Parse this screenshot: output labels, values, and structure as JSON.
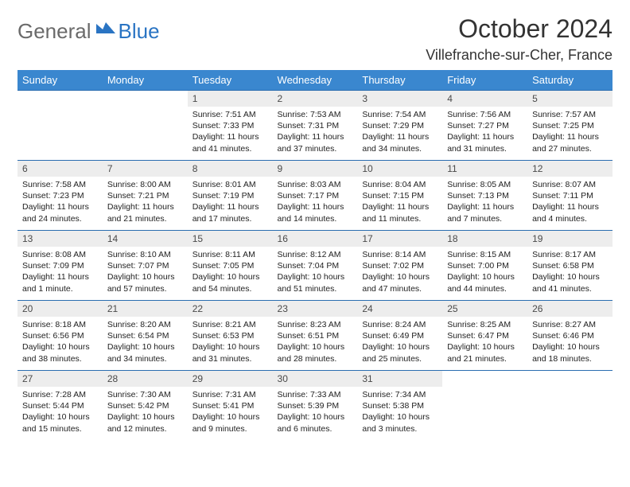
{
  "logo": {
    "general": "General",
    "blue": "Blue"
  },
  "title": "October 2024",
  "location": "Villefranche-sur-Cher, France",
  "colors": {
    "header_bg": "#3a87cf",
    "header_text": "#ffffff",
    "daynum_bg": "#ededed",
    "row_border": "#2a6db0",
    "logo_gray": "#6a6a6a",
    "logo_blue": "#2a74c3"
  },
  "day_headers": [
    "Sunday",
    "Monday",
    "Tuesday",
    "Wednesday",
    "Thursday",
    "Friday",
    "Saturday"
  ],
  "weeks": [
    [
      null,
      null,
      {
        "n": "1",
        "sr": "Sunrise: 7:51 AM",
        "ss": "Sunset: 7:33 PM",
        "dl": "Daylight: 11 hours and 41 minutes."
      },
      {
        "n": "2",
        "sr": "Sunrise: 7:53 AM",
        "ss": "Sunset: 7:31 PM",
        "dl": "Daylight: 11 hours and 37 minutes."
      },
      {
        "n": "3",
        "sr": "Sunrise: 7:54 AM",
        "ss": "Sunset: 7:29 PM",
        "dl": "Daylight: 11 hours and 34 minutes."
      },
      {
        "n": "4",
        "sr": "Sunrise: 7:56 AM",
        "ss": "Sunset: 7:27 PM",
        "dl": "Daylight: 11 hours and 31 minutes."
      },
      {
        "n": "5",
        "sr": "Sunrise: 7:57 AM",
        "ss": "Sunset: 7:25 PM",
        "dl": "Daylight: 11 hours and 27 minutes."
      }
    ],
    [
      {
        "n": "6",
        "sr": "Sunrise: 7:58 AM",
        "ss": "Sunset: 7:23 PM",
        "dl": "Daylight: 11 hours and 24 minutes."
      },
      {
        "n": "7",
        "sr": "Sunrise: 8:00 AM",
        "ss": "Sunset: 7:21 PM",
        "dl": "Daylight: 11 hours and 21 minutes."
      },
      {
        "n": "8",
        "sr": "Sunrise: 8:01 AM",
        "ss": "Sunset: 7:19 PM",
        "dl": "Daylight: 11 hours and 17 minutes."
      },
      {
        "n": "9",
        "sr": "Sunrise: 8:03 AM",
        "ss": "Sunset: 7:17 PM",
        "dl": "Daylight: 11 hours and 14 minutes."
      },
      {
        "n": "10",
        "sr": "Sunrise: 8:04 AM",
        "ss": "Sunset: 7:15 PM",
        "dl": "Daylight: 11 hours and 11 minutes."
      },
      {
        "n": "11",
        "sr": "Sunrise: 8:05 AM",
        "ss": "Sunset: 7:13 PM",
        "dl": "Daylight: 11 hours and 7 minutes."
      },
      {
        "n": "12",
        "sr": "Sunrise: 8:07 AM",
        "ss": "Sunset: 7:11 PM",
        "dl": "Daylight: 11 hours and 4 minutes."
      }
    ],
    [
      {
        "n": "13",
        "sr": "Sunrise: 8:08 AM",
        "ss": "Sunset: 7:09 PM",
        "dl": "Daylight: 11 hours and 1 minute."
      },
      {
        "n": "14",
        "sr": "Sunrise: 8:10 AM",
        "ss": "Sunset: 7:07 PM",
        "dl": "Daylight: 10 hours and 57 minutes."
      },
      {
        "n": "15",
        "sr": "Sunrise: 8:11 AM",
        "ss": "Sunset: 7:05 PM",
        "dl": "Daylight: 10 hours and 54 minutes."
      },
      {
        "n": "16",
        "sr": "Sunrise: 8:12 AM",
        "ss": "Sunset: 7:04 PM",
        "dl": "Daylight: 10 hours and 51 minutes."
      },
      {
        "n": "17",
        "sr": "Sunrise: 8:14 AM",
        "ss": "Sunset: 7:02 PM",
        "dl": "Daylight: 10 hours and 47 minutes."
      },
      {
        "n": "18",
        "sr": "Sunrise: 8:15 AM",
        "ss": "Sunset: 7:00 PM",
        "dl": "Daylight: 10 hours and 44 minutes."
      },
      {
        "n": "19",
        "sr": "Sunrise: 8:17 AM",
        "ss": "Sunset: 6:58 PM",
        "dl": "Daylight: 10 hours and 41 minutes."
      }
    ],
    [
      {
        "n": "20",
        "sr": "Sunrise: 8:18 AM",
        "ss": "Sunset: 6:56 PM",
        "dl": "Daylight: 10 hours and 38 minutes."
      },
      {
        "n": "21",
        "sr": "Sunrise: 8:20 AM",
        "ss": "Sunset: 6:54 PM",
        "dl": "Daylight: 10 hours and 34 minutes."
      },
      {
        "n": "22",
        "sr": "Sunrise: 8:21 AM",
        "ss": "Sunset: 6:53 PM",
        "dl": "Daylight: 10 hours and 31 minutes."
      },
      {
        "n": "23",
        "sr": "Sunrise: 8:23 AM",
        "ss": "Sunset: 6:51 PM",
        "dl": "Daylight: 10 hours and 28 minutes."
      },
      {
        "n": "24",
        "sr": "Sunrise: 8:24 AM",
        "ss": "Sunset: 6:49 PM",
        "dl": "Daylight: 10 hours and 25 minutes."
      },
      {
        "n": "25",
        "sr": "Sunrise: 8:25 AM",
        "ss": "Sunset: 6:47 PM",
        "dl": "Daylight: 10 hours and 21 minutes."
      },
      {
        "n": "26",
        "sr": "Sunrise: 8:27 AM",
        "ss": "Sunset: 6:46 PM",
        "dl": "Daylight: 10 hours and 18 minutes."
      }
    ],
    [
      {
        "n": "27",
        "sr": "Sunrise: 7:28 AM",
        "ss": "Sunset: 5:44 PM",
        "dl": "Daylight: 10 hours and 15 minutes."
      },
      {
        "n": "28",
        "sr": "Sunrise: 7:30 AM",
        "ss": "Sunset: 5:42 PM",
        "dl": "Daylight: 10 hours and 12 minutes."
      },
      {
        "n": "29",
        "sr": "Sunrise: 7:31 AM",
        "ss": "Sunset: 5:41 PM",
        "dl": "Daylight: 10 hours and 9 minutes."
      },
      {
        "n": "30",
        "sr": "Sunrise: 7:33 AM",
        "ss": "Sunset: 5:39 PM",
        "dl": "Daylight: 10 hours and 6 minutes."
      },
      {
        "n": "31",
        "sr": "Sunrise: 7:34 AM",
        "ss": "Sunset: 5:38 PM",
        "dl": "Daylight: 10 hours and 3 minutes."
      },
      null,
      null
    ]
  ]
}
